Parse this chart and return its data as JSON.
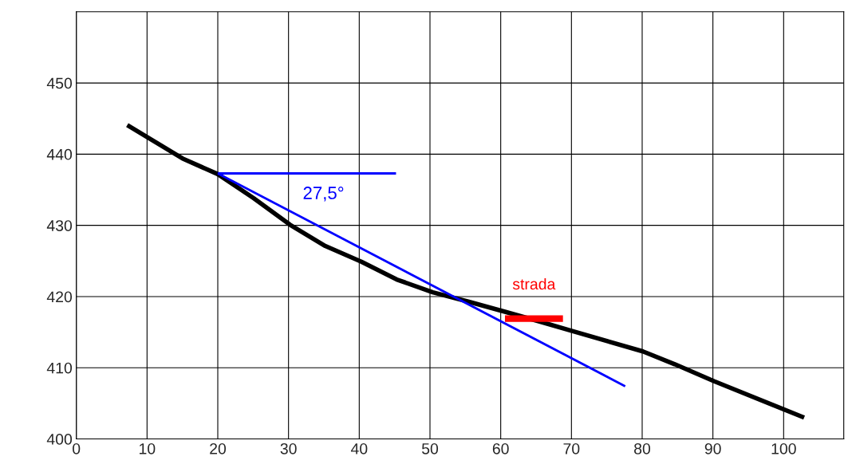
{
  "chart_data": {
    "type": "line",
    "series": [
      {
        "color": "#000000",
        "x": [
          7.2,
          15,
          20,
          25.1,
          30.2,
          35.2,
          40.3,
          45.3,
          50.4,
          55.4,
          60.5,
          65.5,
          70,
          80.1,
          84.6,
          90.2,
          102.9
        ],
        "values": [
          444.1,
          439.4,
          437.2,
          433.8,
          430.1,
          427.1,
          424.9,
          422.4,
          420.6,
          419.3,
          417.9,
          416.5,
          415.2,
          412.3,
          410.5,
          408.1,
          403
        ]
      },
      {
        "color": "#0000ff",
        "x": [
          20,
          77.6
        ],
        "values": [
          437.3,
          407.4
        ]
      },
      {
        "color": "#0000ff",
        "x": [
          20,
          45.2
        ],
        "values": [
          437.3,
          437.3
        ]
      },
      {
        "color": "#ff0000",
        "x": [
          60.6,
          68.8
        ],
        "values": [
          416.9,
          416.9
        ]
      }
    ],
    "annotations": [
      "27,5°",
      "strada"
    ],
    "xlim": [
      0,
      108.5
    ],
    "ylim": [
      400,
      460
    ],
    "xticks": [
      0,
      10,
      20,
      30,
      40,
      50,
      60,
      70,
      80,
      90,
      100
    ],
    "yticks": [
      400,
      410,
      420,
      430,
      440,
      450
    ],
    "grid": true,
    "marker": "none",
    "line_style": "solid"
  }
}
